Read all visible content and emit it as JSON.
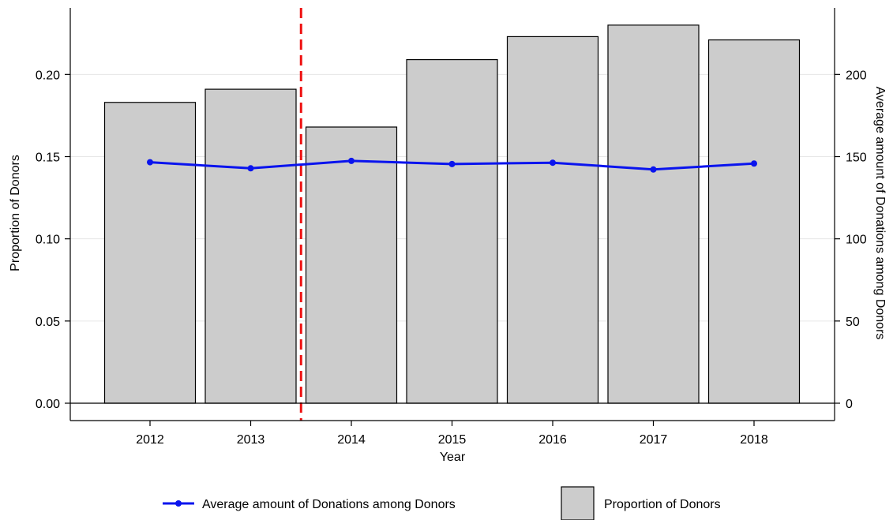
{
  "chart_data": {
    "type": "bar",
    "categories": [
      "2012",
      "2013",
      "2014",
      "2015",
      "2016",
      "2017",
      "2018"
    ],
    "series": [
      {
        "name": "Proportion of Donors",
        "type": "bar",
        "axis": "left",
        "values": [
          0.183,
          0.191,
          0.168,
          0.209,
          0.223,
          0.23,
          0.221
        ]
      },
      {
        "name": "Average amount of Donations among Donors",
        "type": "line",
        "axis": "right",
        "values": [
          146.6,
          142.9,
          147.4,
          145.5,
          146.3,
          142.2,
          145.8
        ]
      }
    ],
    "xlabel": "Year",
    "ylabel": "Proportion of Donors",
    "y2label": "Average amount of Donations among Donors",
    "ylim": [
      0,
      0.24
    ],
    "y2lim": [
      0,
      240
    ],
    "yticks": [
      "0.00",
      "0.05",
      "0.10",
      "0.15",
      "0.20"
    ],
    "y2ticks": [
      "0",
      "50",
      "100",
      "150",
      "200"
    ],
    "vline_x": 2013.5,
    "grid": true,
    "legend": "bottom",
    "colors": {
      "bar_fill": "#cccccc",
      "bar_stroke": "#000000",
      "line": "#0a14ee",
      "vline": "#ee1111",
      "grid": "#e6e6e6"
    }
  }
}
